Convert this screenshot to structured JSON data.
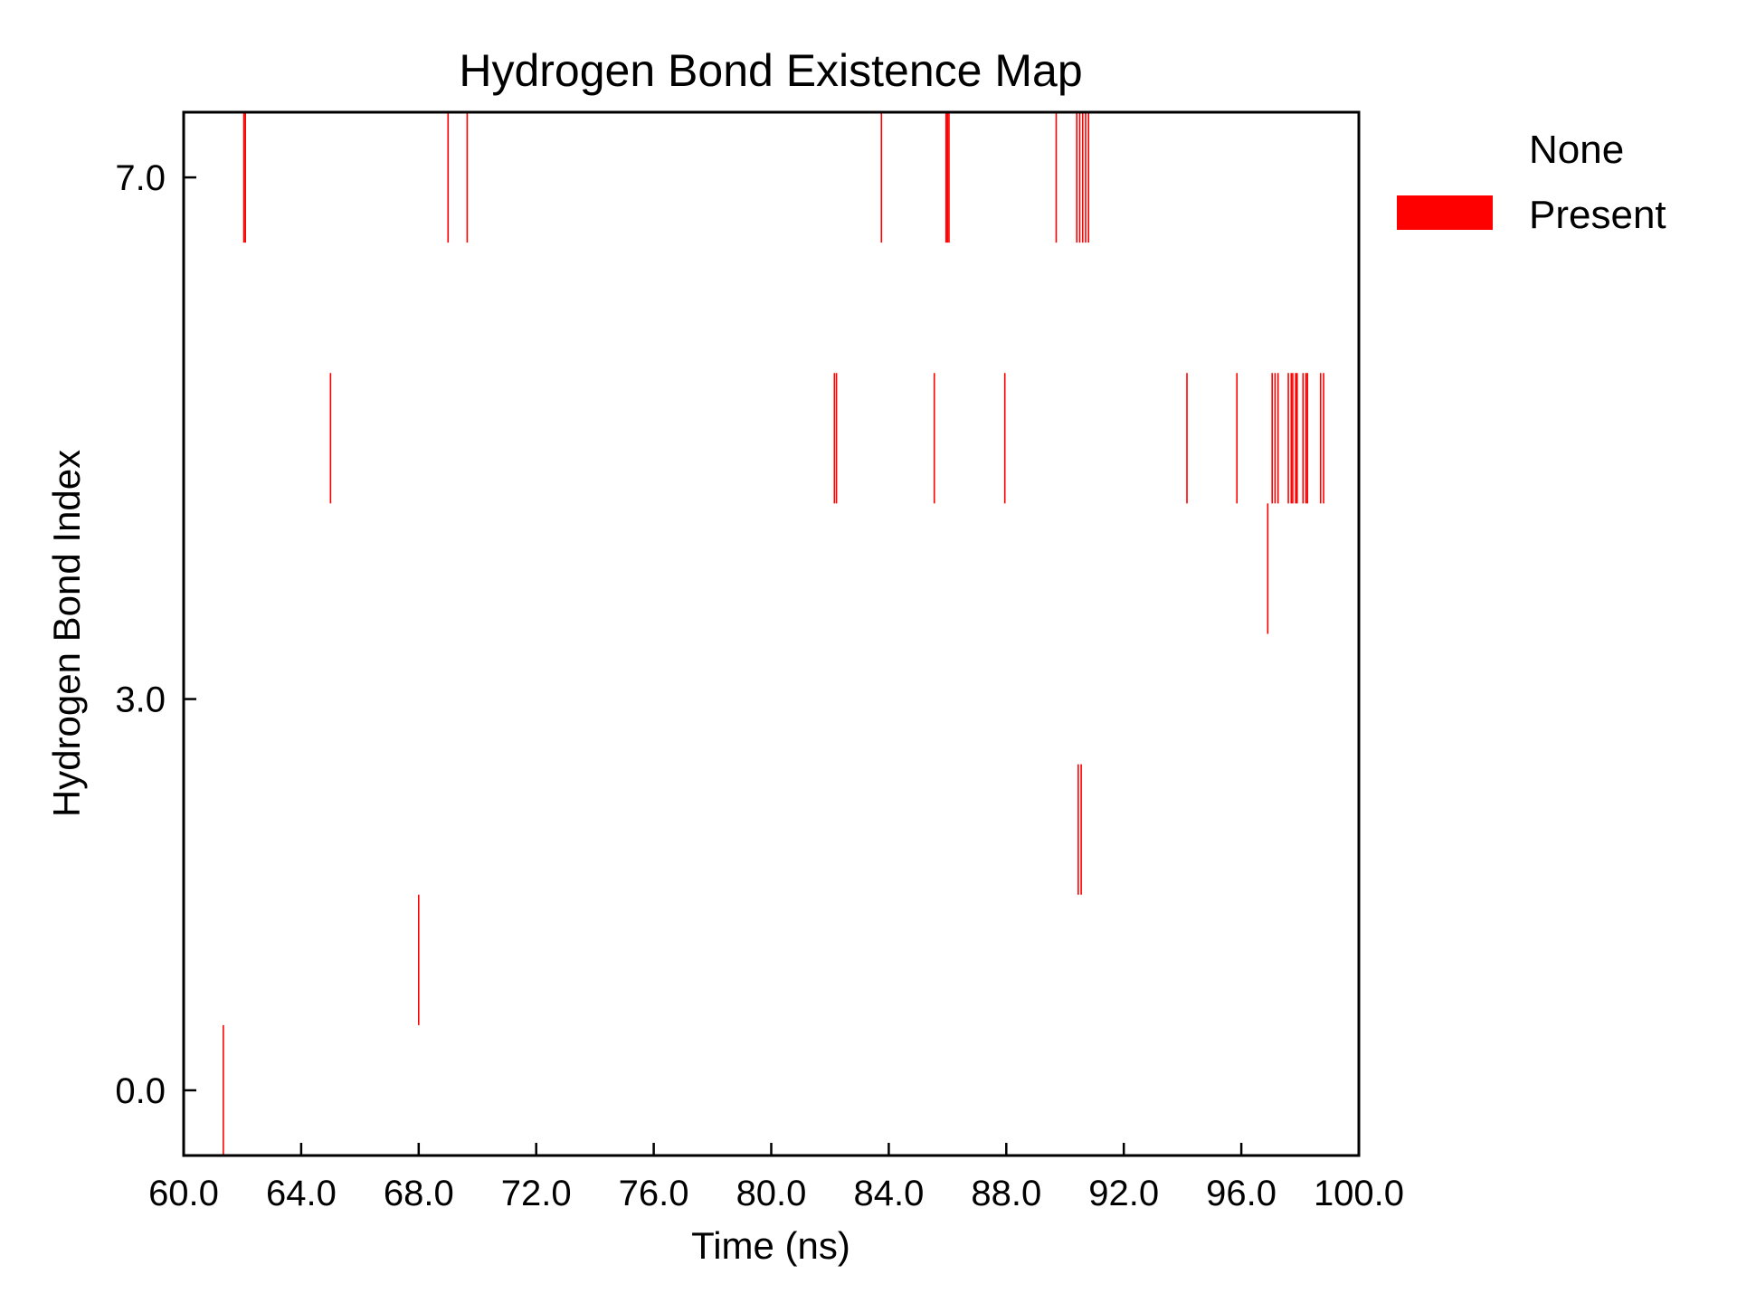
{
  "chart_data": {
    "type": "heatmap",
    "title": "Hydrogen Bond Existence Map",
    "xlabel": "Time (ns)",
    "ylabel": "Hydrogen Bond Index",
    "xlim": [
      60.0,
      100.0
    ],
    "ylim": [
      -0.5,
      7.5
    ],
    "xticks": [
      60,
      64,
      68,
      72,
      76,
      80,
      84,
      88,
      92,
      96,
      100
    ],
    "xtick_labels": [
      "60.0",
      "64.0",
      "68.0",
      "72.0",
      "76.0",
      "80.0",
      "84.0",
      "88.0",
      "92.0",
      "96.0",
      "100.0"
    ],
    "yticks": [
      0,
      3,
      7
    ],
    "ytick_labels": [
      "0.0",
      "3.0",
      "7.0"
    ],
    "grid": false,
    "legend": {
      "placement": "outside-right",
      "entries": [
        {
          "label": "None",
          "color": "#ffffff"
        },
        {
          "label": "Present",
          "color": "#ff0000"
        }
      ]
    },
    "present_color": "#ff0000",
    "series": [
      {
        "index": 0,
        "times": [
          61.35
        ]
      },
      {
        "index": 1,
        "times": [
          68.0
        ]
      },
      {
        "index": 2,
        "times": [
          90.45,
          90.55
        ]
      },
      {
        "index": 3,
        "times": []
      },
      {
        "index": 4,
        "times": [
          96.9
        ]
      },
      {
        "index": 5,
        "times": [
          65.0,
          82.15,
          82.22,
          85.55,
          87.95,
          94.15,
          95.85,
          97.05,
          97.15,
          97.25,
          97.6,
          97.7,
          97.75,
          97.85,
          97.9,
          98.1,
          98.2,
          98.25,
          98.7,
          98.8
        ]
      },
      {
        "index": 6,
        "times": []
      },
      {
        "index": 7,
        "times": [
          62.05,
          62.1,
          69.0,
          69.65,
          83.75,
          85.95,
          86.0,
          86.05,
          89.7,
          90.4,
          90.5,
          90.6,
          90.7,
          90.8
        ]
      }
    ]
  }
}
